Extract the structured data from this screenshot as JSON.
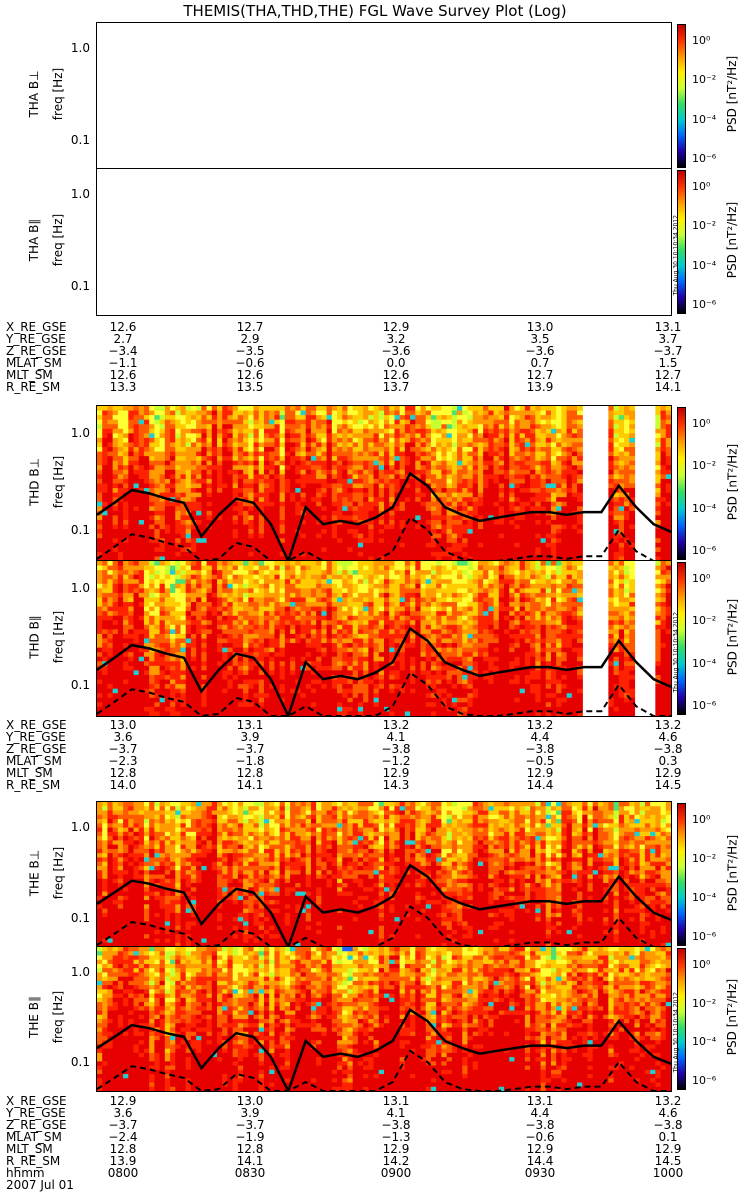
{
  "title": "THEMIS(THA,THD,THE) FGL Wave Survey Plot (Log)",
  "colorbar": {
    "label": "PSD [nT²/Hz]",
    "ticks": [
      "10⁰",
      "10⁻²",
      "10⁻⁴",
      "10⁻⁶"
    ],
    "stamp": "Thu Aug 30 10:10:34 2012"
  },
  "freq_axis": {
    "label": "freq [Hz]",
    "ticks": [
      "1.0",
      "0.1"
    ]
  },
  "chart_data": [
    {
      "type": "heatmap",
      "probe": "THA",
      "component": "B⊥",
      "ylabel": "THA B⊥",
      "data_available": false,
      "yrange_hz": [
        0.05,
        2.0
      ],
      "zrange": [
        "1e-6",
        "1e1"
      ]
    },
    {
      "type": "heatmap",
      "probe": "THA",
      "component": "B∥",
      "ylabel": "THA B∥",
      "data_available": false,
      "yrange_hz": [
        0.05,
        2.0
      ],
      "zrange": [
        "1e-6",
        "1e1"
      ]
    },
    {
      "type": "heatmap",
      "probe": "THD",
      "component": "B⊥",
      "ylabel": "THD B⊥",
      "data_available": true,
      "data_gaps_hhmm": [
        [
          "0942",
          "0947"
        ],
        [
          "0953",
          "0957"
        ]
      ],
      "yrange_hz": [
        0.05,
        2.0
      ],
      "zrange": [
        "1e-6",
        "1e1"
      ],
      "overlay_solid_hz": [
        0.15,
        0.2,
        0.27,
        0.25,
        0.22,
        0.2,
        0.09,
        0.15,
        0.22,
        0.2,
        0.12,
        0.05,
        0.18,
        0.12,
        0.13,
        0.12,
        0.14,
        0.18,
        0.4,
        0.3,
        0.18,
        0.15,
        0.13,
        0.14,
        0.15,
        0.16,
        0.16,
        0.15,
        0.16,
        0.16,
        0.3,
        0.18,
        0.12,
        0.1
      ]
    },
    {
      "type": "heatmap",
      "probe": "THD",
      "component": "B∥",
      "ylabel": "THD B∥",
      "data_available": true,
      "data_gaps_hhmm": [
        [
          "0942",
          "0947"
        ],
        [
          "0953",
          "0957"
        ]
      ],
      "yrange_hz": [
        0.05,
        2.0
      ],
      "zrange": [
        "1e-6",
        "1e1"
      ]
    },
    {
      "type": "heatmap",
      "probe": "THE",
      "component": "B⊥",
      "ylabel": "THE B⊥",
      "data_available": true,
      "yrange_hz": [
        0.05,
        2.0
      ],
      "zrange": [
        "1e-6",
        "1e1"
      ]
    },
    {
      "type": "heatmap",
      "probe": "THE",
      "component": "B∥",
      "ylabel": "THE B∥",
      "data_available": true,
      "yrange_hz": [
        0.05,
        2.0
      ],
      "zrange": [
        "1e-6",
        "1e1"
      ]
    }
  ],
  "ephemeris": {
    "labels": [
      "X_RE_GSE",
      "Y_RE_GSE",
      "Z_RE_GSE",
      "MLAT_SM",
      "MLT_SM",
      "R_RE_SM"
    ],
    "THA": [
      [
        "12.6",
        "12.7",
        "12.9",
        "13.0",
        "13.1"
      ],
      [
        "2.7",
        "2.9",
        "3.2",
        "3.5",
        "3.7"
      ],
      [
        "−3.4",
        "−3.5",
        "−3.6",
        "−3.6",
        "−3.7"
      ],
      [
        "−1.1",
        "−0.6",
        "0.0",
        "0.7",
        "1.5"
      ],
      [
        "12.6",
        "12.6",
        "12.6",
        "12.7",
        "12.7"
      ],
      [
        "13.3",
        "13.5",
        "13.7",
        "13.9",
        "14.1"
      ]
    ],
    "THD": [
      [
        "13.0",
        "13.1",
        "13.2",
        "13.2",
        "13.2"
      ],
      [
        "3.6",
        "3.9",
        "4.1",
        "4.4",
        "4.6"
      ],
      [
        "−3.7",
        "−3.7",
        "−3.8",
        "−3.8",
        "−3.8"
      ],
      [
        "−2.3",
        "−1.8",
        "−1.2",
        "−0.5",
        "0.3"
      ],
      [
        "12.8",
        "12.8",
        "12.9",
        "12.9",
        "12.9"
      ],
      [
        "14.0",
        "14.1",
        "14.3",
        "14.4",
        "14.5"
      ]
    ],
    "THE": [
      [
        "12.9",
        "13.0",
        "13.1",
        "13.1",
        "13.2"
      ],
      [
        "3.6",
        "3.9",
        "4.1",
        "4.4",
        "4.6"
      ],
      [
        "−3.7",
        "−3.7",
        "−3.8",
        "−3.8",
        "−3.8"
      ],
      [
        "−2.4",
        "−1.9",
        "−1.3",
        "−0.6",
        "0.1"
      ],
      [
        "12.8",
        "12.8",
        "12.9",
        "12.9",
        "12.9"
      ],
      [
        "13.9",
        "14.1",
        "14.2",
        "14.4",
        "14.5"
      ]
    ]
  },
  "time_axis": {
    "label": "hhmm",
    "ticks": [
      "0800",
      "0830",
      "0900",
      "0930",
      "1000"
    ],
    "date": "2007 Jul 01"
  }
}
